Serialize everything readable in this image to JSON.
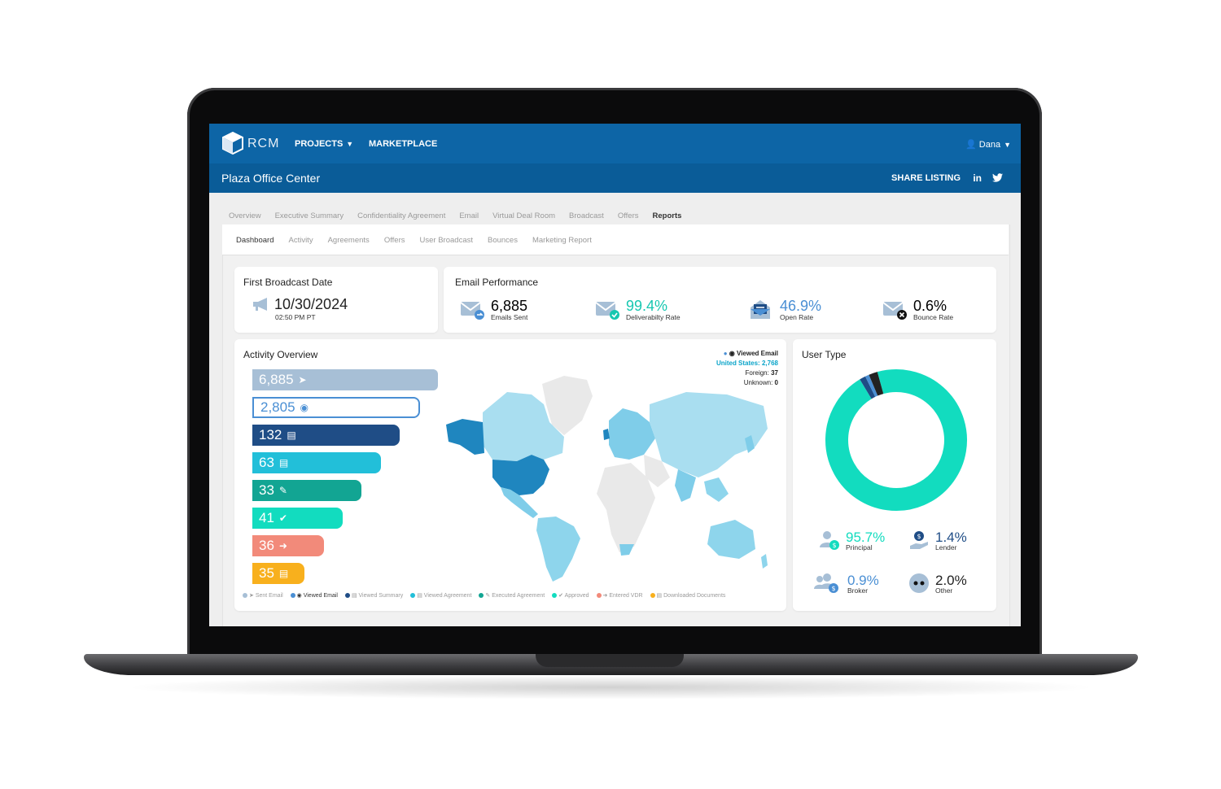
{
  "header": {
    "logo_text": "RCM",
    "nav": [
      {
        "label": "PROJECTS",
        "has_dropdown": true
      },
      {
        "label": "MARKETPLACE",
        "has_dropdown": false
      }
    ],
    "user_name": "Dana",
    "listing_title": "Plaza Office Center",
    "share_label": "SHARE LISTING",
    "social": [
      "in",
      "twitter-icon"
    ]
  },
  "primary_tabs": [
    "Overview",
    "Executive Summary",
    "Confidentiality Agreement",
    "Email",
    "Virtual Deal Room",
    "Broadcast",
    "Offers",
    "Reports"
  ],
  "primary_active": "Reports",
  "secondary_tabs": [
    "Dashboard",
    "Activity",
    "Agreements",
    "Offers",
    "User Broadcast",
    "Bounces",
    "Marketing Report"
  ],
  "secondary_active": "Dashboard",
  "first_broadcast": {
    "title": "First Broadcast Date",
    "date": "10/30/2024",
    "time": "02:50 PM PT"
  },
  "email_performance": {
    "title": "Email Performance",
    "items": [
      {
        "value": "6,885",
        "label": "Emails Sent",
        "color": "#222222",
        "icon": "envelope-arrow-icon"
      },
      {
        "value": "99.4%",
        "label": "Deliverabilty Rate",
        "color": "#16c7b0",
        "icon": "envelope-check-icon"
      },
      {
        "value": "46.9%",
        "label": "Open Rate",
        "color": "#4a8fd4",
        "icon": "envelope-open-icon"
      },
      {
        "value": "0.6%",
        "label": "Bounce Rate",
        "color": "#222222",
        "icon": "envelope-x-icon"
      }
    ]
  },
  "activity_overview": {
    "title": "Activity Overview",
    "bars": [
      {
        "value": "6,885",
        "icon": "➤",
        "color": "#a7bfd6"
      },
      {
        "value": "2,805",
        "icon": "◉",
        "color": "#4a8fd4"
      },
      {
        "value": "132",
        "icon": "▤",
        "color": "#1f4d86"
      },
      {
        "value": "63",
        "icon": "▤",
        "color": "#22bfd9"
      },
      {
        "value": "33",
        "icon": "✎",
        "color": "#12a593"
      },
      {
        "value": "41",
        "icon": "✔",
        "color": "#12dcbf"
      },
      {
        "value": "36",
        "icon": "➜",
        "color": "#f28a7a"
      },
      {
        "value": "35",
        "icon": "▤",
        "color": "#f8b01d"
      }
    ],
    "legend": [
      {
        "label": "Sent Email",
        "color": "#a7bfd6",
        "bold": false
      },
      {
        "label": "Viewed Email",
        "color": "#4a8fd4",
        "bold": true
      },
      {
        "label": "Viewed Summary",
        "color": "#1f4d86",
        "bold": false
      },
      {
        "label": "Viewed Agreement",
        "color": "#22bfd9",
        "bold": false
      },
      {
        "label": "Executed Agreement",
        "color": "#12a593",
        "bold": false
      },
      {
        "label": "Approved",
        "color": "#12dcbf",
        "bold": false
      },
      {
        "label": "Entered VDR",
        "color": "#f28a7a",
        "bold": false
      },
      {
        "label": "Downloaded Documents",
        "color": "#f8b01d",
        "bold": false
      }
    ],
    "map_legend": {
      "title": "Viewed Email",
      "us_label": "United States:",
      "us_value": "2,768",
      "foreign_label": "Foreign:",
      "foreign_value": "37",
      "unknown_label": "Unknown:",
      "unknown_value": "0"
    }
  },
  "user_type": {
    "title": "User Type",
    "items": [
      {
        "value": "95.7%",
        "label": "Principal",
        "color": "#12dcbf",
        "icon": "principal-icon"
      },
      {
        "value": "1.4%",
        "label": "Lender",
        "color": "#1f4d86",
        "icon": "lender-icon"
      },
      {
        "value": "0.9%",
        "label": "Broker",
        "color": "#4a8fd4",
        "icon": "broker-icon"
      },
      {
        "value": "2.0%",
        "label": "Other",
        "color": "#222222",
        "icon": "other-icon"
      }
    ]
  },
  "chart_data": {
    "type": "pie",
    "title": "User Type",
    "categories": [
      "Principal",
      "Lender",
      "Broker",
      "Other"
    ],
    "values": [
      95.7,
      1.4,
      0.9,
      2.0
    ],
    "colors": [
      "#12dcbf",
      "#1f4d86",
      "#4a8fd4",
      "#222222"
    ]
  }
}
